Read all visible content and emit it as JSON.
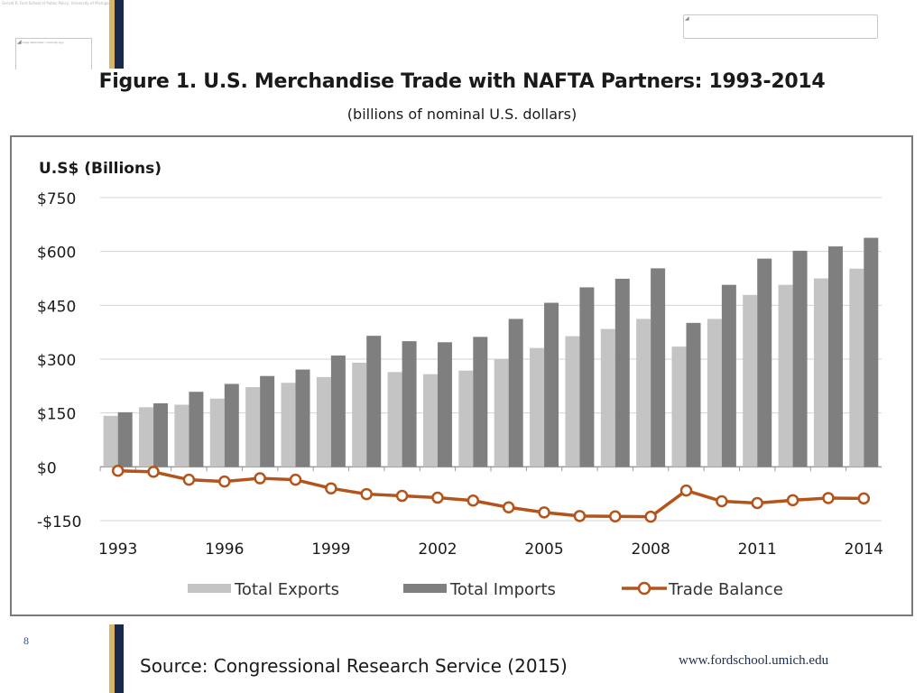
{
  "slide": {
    "header_tiny_text": "Gerald R. Ford School of Public Policy, University of Michigan",
    "placeholder_text": "Image placeholder / university logo",
    "number": "8",
    "source": "Source:  Congressional Research Service (2015)",
    "url": "www.fordschool.umich.edu",
    "colors": {
      "navy": "#18294a",
      "gold": "#d7b56d"
    }
  },
  "chart_data": {
    "type": "bar",
    "title": "Figure 1. U.S. Merchandise Trade with NAFTA Partners: 1993-2014",
    "subtitle": "(billions of nominal U.S. dollars)",
    "ylabel": "U.S$ (Billions)",
    "xlabel": "",
    "ylim": [
      -150,
      750
    ],
    "yticks": [
      750,
      600,
      450,
      300,
      150,
      0,
      -150
    ],
    "ytick_labels": [
      "$750",
      "$600",
      "$450",
      "$300",
      "$150",
      "$0",
      "-$150"
    ],
    "categories": [
      "1993",
      "1994",
      "1995",
      "1996",
      "1997",
      "1998",
      "1999",
      "2000",
      "2001",
      "2002",
      "2003",
      "2004",
      "2005",
      "2006",
      "2007",
      "2008",
      "2009",
      "2010",
      "2011",
      "2012",
      "2013",
      "2014"
    ],
    "xtick_labels": [
      "1993",
      "1996",
      "1999",
      "2002",
      "2005",
      "2008",
      "2011",
      "2014"
    ],
    "grid": true,
    "legend_position": "bottom",
    "series": [
      {
        "name": "Total Exports",
        "type": "bar",
        "color": "#c4c4c4",
        "values": [
          142,
          166,
          173,
          190,
          222,
          234,
          250,
          290,
          264,
          258,
          268,
          300,
          331,
          364,
          384,
          412,
          335,
          412,
          479,
          507,
          525,
          552
        ]
      },
      {
        "name": "Total Imports",
        "type": "bar",
        "color": "#7f7f7f",
        "values": [
          152,
          177,
          209,
          231,
          253,
          271,
          310,
          365,
          350,
          347,
          362,
          412,
          457,
          500,
          524,
          553,
          401,
          507,
          580,
          602,
          614,
          638
        ]
      },
      {
        "name": "Trade Balance",
        "type": "line",
        "color": "#b4541a",
        "values": [
          -11,
          -14,
          -36,
          -41,
          -32,
          -36,
          -60,
          -76,
          -81,
          -86,
          -94,
          -113,
          -127,
          -137,
          -138,
          -139,
          -66,
          -96,
          -101,
          -93,
          -87,
          -88
        ]
      }
    ]
  }
}
